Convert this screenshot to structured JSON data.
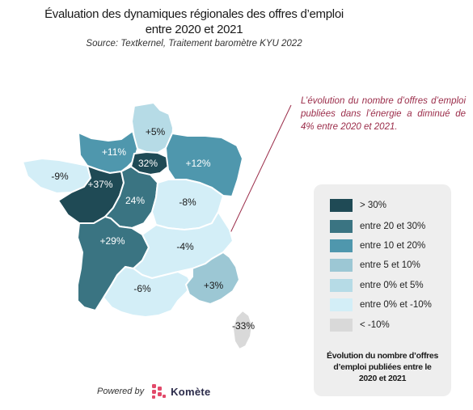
{
  "title_line1": "Évaluation des dynamiques régionales des offres d’emploi",
  "title_line2": "entre 2020 et 2021",
  "source": "Source: Textkernel, Traitement baromètre KYU 2022",
  "note": "L’évolution du nombre d’offres d’emploi publiées dans l’énergie a diminué de 4% entre 2020 et 2021.",
  "colors": {
    "gt30": "#1f4a55",
    "r20_30": "#3a7482",
    "r10_20": "#4f97ad",
    "r5_10": "#9cc7d4",
    "r0_5": "#b6dbe6",
    "r0_m10": "#d3eef7",
    "lt_m10": "#d9d9d9",
    "note_line": "#9b2d4a",
    "brand_pink": "#e24a6a"
  },
  "regions": {
    "hauts_de_france": "+5%",
    "normandie": "+11%",
    "ile_de_france": "32%",
    "grand_est": "+12%",
    "bretagne": "-9%",
    "pays_de_la_loire": "+37%",
    "centre_val_de_loire": "24%",
    "bourgogne_franche_comte": "-8%",
    "nouvelle_aquitaine": "+29%",
    "auvergne_rhone_alpes": "-4%",
    "occitanie": "-6%",
    "paca": "+3%",
    "corse": "-33%"
  },
  "legend": {
    "items": [
      {
        "label": "> 30%",
        "color": "#1f4a55"
      },
      {
        "label": "entre 20 et 30%",
        "color": "#3a7482"
      },
      {
        "label": "entre 10 et 20%",
        "color": "#4f97ad"
      },
      {
        "label": "entre 5 et 10%",
        "color": "#9cc7d4"
      },
      {
        "label": "entre 0% et 5%",
        "color": "#b6dbe6"
      },
      {
        "label": "entre 0% et -10%",
        "color": "#d3eef7"
      },
      {
        "label": "< -10%",
        "color": "#d9d9d9"
      }
    ],
    "caption_line1": "Évolution du nombre d’offres",
    "caption_line2": "d’emploi publiées entre le",
    "caption_line3": "2020 et 2021"
  },
  "footer": {
    "powered_by": "Powered by",
    "brand": "Komète",
    "logo_icon": "komete-logo-icon"
  }
}
